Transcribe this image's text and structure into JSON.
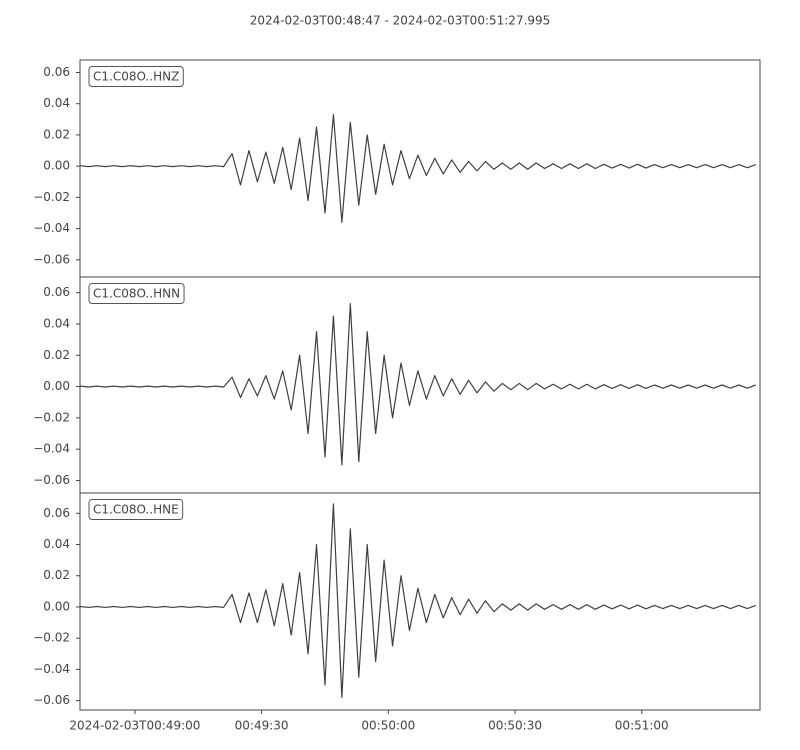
{
  "chart_data": {
    "type": "line",
    "title": "2024-02-03T00:48:47  -  2024-02-03T00:51:27.995",
    "color": "#404040",
    "x": [
      0,
      2,
      4,
      6,
      8,
      10,
      12,
      14,
      16,
      18,
      20,
      22,
      24,
      26,
      28,
      30,
      32,
      34,
      36,
      38,
      40,
      42,
      44,
      46,
      48,
      50,
      52,
      54,
      56,
      58,
      60,
      62,
      64,
      66,
      68,
      70,
      72,
      74,
      76,
      78,
      80,
      82,
      84,
      86,
      88,
      90,
      92,
      94,
      96,
      98,
      100,
      102,
      104,
      106,
      108,
      110,
      112,
      114,
      116,
      118,
      120,
      122,
      124,
      126,
      128,
      130,
      132,
      134,
      136,
      138,
      140,
      142,
      144,
      146,
      148,
      150,
      152,
      154,
      156,
      158,
      160
    ],
    "xlim": [
      0,
      160.995
    ],
    "xticks": [
      {
        "value": 13,
        "label": "2024-02-03T00:49:00"
      },
      {
        "value": 43,
        "label": "00:49:30"
      },
      {
        "value": 73,
        "label": "00:50:00"
      },
      {
        "value": 103,
        "label": "00:50:30"
      },
      {
        "value": 133,
        "label": "00:51:00"
      }
    ],
    "panels": [
      {
        "label": "C1.C08O..HNZ",
        "ylim": [
          -0.071,
          0.068
        ],
        "yticks": [
          {
            "value": -0.06,
            "label": "−0.06"
          },
          {
            "value": -0.04,
            "label": "−0.04"
          },
          {
            "value": -0.02,
            "label": "−0.02"
          },
          {
            "value": 0,
            "label": "0.00"
          },
          0.02,
          0.04,
          0.06
        ],
        "values": [
          0.0003,
          -0.0003,
          0.0003,
          -0.0003,
          0.0003,
          -0.0003,
          0.0003,
          -0.0003,
          0.0003,
          -0.0003,
          0.0003,
          -0.0003,
          0.0003,
          -0.0003,
          0.0003,
          -0.0003,
          0.0003,
          -0.0003,
          0.008,
          -0.012,
          0.01,
          -0.01,
          0.009,
          -0.011,
          0.012,
          -0.015,
          0.018,
          -0.022,
          0.025,
          -0.03,
          0.033,
          -0.036,
          0.028,
          -0.025,
          0.02,
          -0.018,
          0.014,
          -0.012,
          0.01,
          -0.008,
          0.007,
          -0.006,
          0.005,
          -0.005,
          0.004,
          -0.004,
          0.003,
          -0.003,
          0.003,
          -0.002,
          0.002,
          -0.002,
          0.002,
          -0.002,
          0.002,
          -0.0015,
          0.0015,
          -0.0015,
          0.0015,
          -0.0015,
          0.0015,
          -0.0015,
          0.0012,
          -0.0012,
          0.0012,
          -0.0012,
          0.0012,
          -0.0012,
          0.001,
          -0.001,
          0.001,
          -0.001,
          0.001,
          -0.001,
          0.001,
          -0.001,
          0.001,
          -0.001,
          0.001,
          -0.001,
          0.001
        ]
      },
      {
        "label": "C1.C08O..HNN",
        "ylim": [
          -0.068,
          0.07
        ],
        "yticks": [
          {
            "value": -0.06,
            "label": "−0.06"
          },
          {
            "value": -0.04,
            "label": "−0.04"
          },
          {
            "value": -0.02,
            "label": "−0.02"
          },
          {
            "value": 0,
            "label": "0.00"
          },
          0.02,
          0.04,
          0.06
        ],
        "values": [
          0.0003,
          -0.0003,
          0.0003,
          -0.0003,
          0.0003,
          -0.0003,
          0.0003,
          -0.0003,
          0.0003,
          -0.0003,
          0.0003,
          -0.0003,
          0.0003,
          -0.0003,
          0.0003,
          -0.0003,
          0.0003,
          -0.0003,
          0.006,
          -0.007,
          0.005,
          -0.006,
          0.007,
          -0.008,
          0.01,
          -0.015,
          0.02,
          -0.03,
          0.035,
          -0.045,
          0.045,
          -0.05,
          0.053,
          -0.048,
          0.035,
          -0.03,
          0.02,
          -0.02,
          0.015,
          -0.012,
          0.01,
          -0.008,
          0.007,
          -0.006,
          0.005,
          -0.005,
          0.004,
          -0.004,
          0.003,
          -0.003,
          0.002,
          -0.002,
          0.002,
          -0.002,
          0.002,
          -0.0015,
          0.0015,
          -0.0015,
          0.0015,
          -0.0015,
          0.0015,
          -0.0015,
          0.0012,
          -0.0012,
          0.0012,
          -0.0012,
          0.0012,
          -0.0012,
          0.001,
          -0.001,
          0.001,
          -0.001,
          0.001,
          -0.001,
          0.001,
          -0.001,
          0.001,
          -0.001,
          0.001,
          -0.001,
          0.001
        ]
      },
      {
        "label": "C1.C08O..HNE",
        "ylim": [
          -0.066,
          0.073
        ],
        "yticks": [
          {
            "value": -0.06,
            "label": "−0.06"
          },
          {
            "value": -0.04,
            "label": "−0.04"
          },
          {
            "value": -0.02,
            "label": "−0.02"
          },
          {
            "value": 0,
            "label": "0.00"
          },
          0.02,
          0.04,
          0.06
        ],
        "values": [
          0.0003,
          -0.0003,
          0.0003,
          -0.0003,
          0.0003,
          -0.0003,
          0.0003,
          -0.0003,
          0.0003,
          -0.0003,
          0.0003,
          -0.0003,
          0.0003,
          -0.0003,
          0.0003,
          -0.0003,
          0.0003,
          -0.0003,
          0.008,
          -0.01,
          0.009,
          -0.01,
          0.011,
          -0.012,
          0.015,
          -0.018,
          0.022,
          -0.03,
          0.04,
          -0.05,
          0.066,
          -0.058,
          0.05,
          -0.045,
          0.04,
          -0.035,
          0.03,
          -0.025,
          0.02,
          -0.015,
          0.012,
          -0.01,
          0.008,
          -0.007,
          0.006,
          -0.005,
          0.005,
          -0.004,
          0.004,
          -0.003,
          0.002,
          -0.002,
          0.002,
          -0.002,
          0.002,
          -0.0015,
          0.0015,
          -0.0015,
          0.0015,
          -0.0015,
          0.0015,
          -0.0015,
          0.0012,
          -0.0012,
          0.0012,
          -0.0012,
          0.0012,
          -0.0012,
          0.001,
          -0.001,
          0.001,
          -0.001,
          0.001,
          -0.001,
          0.001,
          -0.001,
          0.001,
          -0.001,
          0.001,
          -0.001,
          0.001
        ]
      }
    ]
  }
}
